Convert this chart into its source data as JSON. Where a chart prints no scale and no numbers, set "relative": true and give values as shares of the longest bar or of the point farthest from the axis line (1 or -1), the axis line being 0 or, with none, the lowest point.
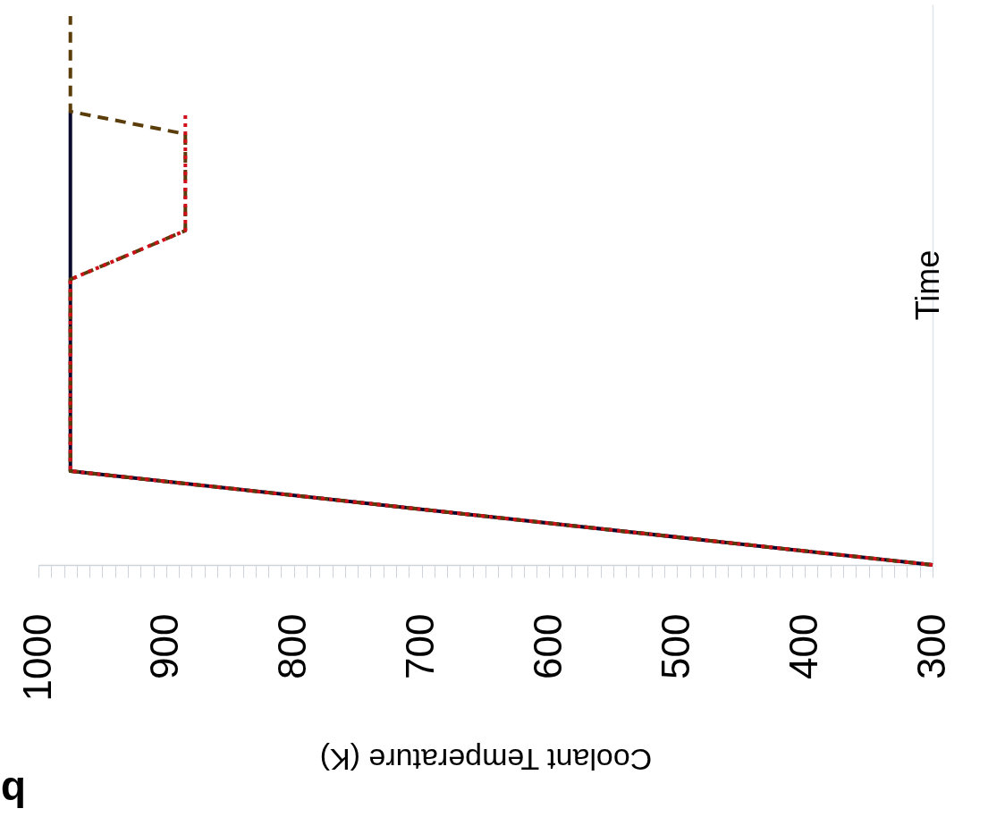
{
  "chart_data": {
    "type": "line",
    "title": "b",
    "xlabel": "Coolant Temperature (K)",
    "ylabel": "Time",
    "xlim": [
      1000,
      300
    ],
    "relative": true,
    "tick_labels": "x",
    "xticks": [
      300,
      400,
      500,
      600,
      700,
      800,
      900,
      1000,
      {
        "value": 310,
        "label": null
      },
      {
        "value": 320,
        "label": null
      },
      {
        "value": 330,
        "label": null
      },
      {
        "value": 340,
        "label": null
      },
      {
        "value": 350,
        "label": null
      },
      {
        "value": 360,
        "label": null
      },
      {
        "value": 370,
        "label": null
      },
      {
        "value": 380,
        "label": null
      },
      {
        "value": 390,
        "label": null
      },
      {
        "value": 410,
        "label": null
      },
      {
        "value": 420,
        "label": null
      },
      {
        "value": 430,
        "label": null
      },
      {
        "value": 440,
        "label": null
      },
      {
        "value": 450,
        "label": null
      },
      {
        "value": 460,
        "label": null
      },
      {
        "value": 470,
        "label": null
      },
      {
        "value": 480,
        "label": null
      },
      {
        "value": 490,
        "label": null
      },
      {
        "value": 510,
        "label": null
      },
      {
        "value": 520,
        "label": null
      },
      {
        "value": 530,
        "label": null
      },
      {
        "value": 540,
        "label": null
      },
      {
        "value": 550,
        "label": null
      },
      {
        "value": 560,
        "label": null
      },
      {
        "value": 570,
        "label": null
      },
      {
        "value": 580,
        "label": null
      },
      {
        "value": 590,
        "label": null
      },
      {
        "value": 610,
        "label": null
      },
      {
        "value": 620,
        "label": null
      },
      {
        "value": 630,
        "label": null
      },
      {
        "value": 640,
        "label": null
      },
      {
        "value": 650,
        "label": null
      },
      {
        "value": 660,
        "label": null
      },
      {
        "value": 670,
        "label": null
      },
      {
        "value": 680,
        "label": null
      },
      {
        "value": 690,
        "label": null
      },
      {
        "value": 710,
        "label": null
      },
      {
        "value": 720,
        "label": null
      },
      {
        "value": 730,
        "label": null
      },
      {
        "value": 740,
        "label": null
      },
      {
        "value": 750,
        "label": null
      },
      {
        "value": 760,
        "label": null
      },
      {
        "value": 770,
        "label": null
      },
      {
        "value": 780,
        "label": null
      },
      {
        "value": 790,
        "label": null
      },
      {
        "value": 810,
        "label": null
      },
      {
        "value": 820,
        "label": null
      },
      {
        "value": 830,
        "label": null
      },
      {
        "value": 840,
        "label": null
      },
      {
        "value": 850,
        "label": null
      },
      {
        "value": 860,
        "label": null
      },
      {
        "value": 870,
        "label": null
      },
      {
        "value": 880,
        "label": null
      },
      {
        "value": 890,
        "label": null
      },
      {
        "value": 910,
        "label": null
      },
      {
        "value": 920,
        "label": null
      },
      {
        "value": 930,
        "label": null
      },
      {
        "value": 940,
        "label": null
      },
      {
        "value": 950,
        "label": null
      },
      {
        "value": 960,
        "label": null
      },
      {
        "value": 970,
        "label": null
      },
      {
        "value": 980,
        "label": null
      },
      {
        "value": 990,
        "label": null
      }
    ],
    "series": [
      {
        "color": "#0a0a2e",
        "line_style": "solid",
        "x": [
          300,
          975,
          975
        ],
        "values": [
          0,
          0.171,
          0.826
        ]
      },
      {
        "color": "#5a3d0a",
        "line_style": "dashed",
        "x": [
          300,
          975,
          975,
          885,
          885,
          975,
          975
        ],
        "values": [
          0,
          0.171,
          0.52,
          0.609,
          0.785,
          0.826,
          1
        ]
      },
      {
        "color": "#d0101a",
        "line_style": "dotted",
        "x": [
          300,
          975,
          975,
          885,
          885
        ],
        "values": [
          0,
          0.171,
          0.52,
          0.609,
          0.826
        ]
      }
    ]
  }
}
